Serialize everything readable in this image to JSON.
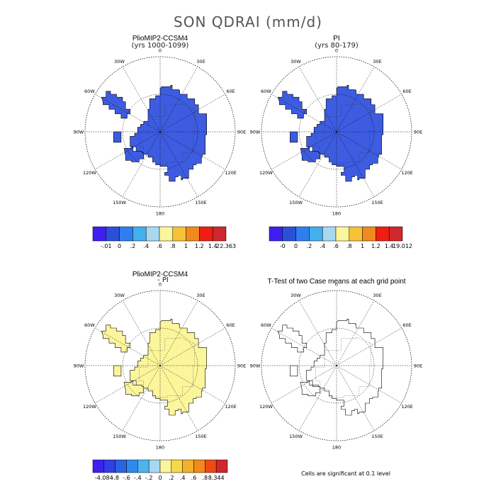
{
  "title": "SON QDRAI (mm/d)",
  "footnote": "Cells are significant at 0.1 level",
  "lon_labels": [
    "0",
    "30E",
    "60E",
    "90E",
    "120E",
    "150E",
    "180",
    "150W",
    "120W",
    "90W",
    "60W",
    "30W"
  ],
  "panels": [
    {
      "title": "PlioMIP2-CCSM4",
      "subtitle": "(yrs 1000-1099)",
      "fill_color": "#3d5ce0",
      "outline": "#000000"
    },
    {
      "title": "PI",
      "subtitle": "(yrs 80-179)",
      "fill_color": "#3d5ce0",
      "outline": "#000000"
    },
    {
      "title": "PlioMIP2-CCSM4",
      "subtitle": "- PI",
      "fill_color": "#fbf59b",
      "outline": "#000000"
    },
    {
      "title": "T-Test of two Case means at each grid point",
      "subtitle": "",
      "fill_color": "none",
      "outline": "#000000"
    }
  ],
  "colorbars": [
    {
      "labels": [
        "-.01",
        "0",
        ".2",
        ".4",
        ".6",
        ".8",
        "1",
        "1.2",
        "1.4",
        "22.363"
      ],
      "colors": [
        "#3f1fef",
        "#2c4fd9",
        "#2f7ef0",
        "#41b0ec",
        "#a8d8f0",
        "#fbf59b",
        "#f7c235",
        "#f18a1c",
        "#f01e12",
        "#d0262e"
      ]
    },
    {
      "labels": [
        "-0",
        "0",
        ".2",
        ".4",
        ".6",
        ".8",
        "1",
        "1.2",
        "1.4",
        "19.012"
      ],
      "colors": [
        "#3f1fef",
        "#2c4fd9",
        "#2f7ef0",
        "#41b0ec",
        "#a8d8f0",
        "#fbf59b",
        "#f7c235",
        "#f18a1c",
        "#f01e12",
        "#d0262e"
      ]
    },
    {
      "labels": [
        "-4.084",
        "-.8",
        "-.6",
        "-.4",
        "-.2",
        "0",
        ".2",
        ".4",
        ".6",
        ".8",
        "8.344"
      ],
      "colors": [
        "#3f1fef",
        "#3040e6",
        "#2c62e3",
        "#2f8aee",
        "#4fb4ee",
        "#a8d8f0",
        "#fbf59b",
        "#f7d84a",
        "#f5b02c",
        "#f18a1c",
        "#f04a14",
        "#d0262e"
      ]
    }
  ]
}
